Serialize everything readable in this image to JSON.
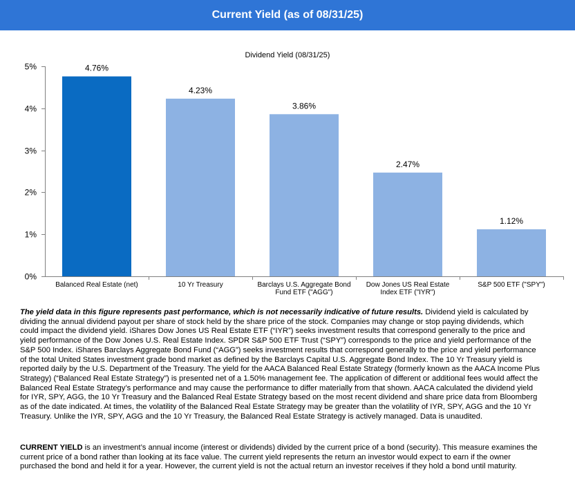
{
  "header": {
    "title": "Current Yield  (as of 08/31/25)",
    "bg_color": "#2f75d6"
  },
  "chart_data": {
    "type": "bar",
    "title": "Dividend Yield (08/31/25)",
    "categories": [
      [
        "Balanced Real Estate (net)"
      ],
      [
        "10 Yr Treasury"
      ],
      [
        "Barclays U.S. Aggregate Bond",
        "Fund ETF (\"AGG\")"
      ],
      [
        "Dow Jones US Real Estate",
        "Index ETF (\"IYR\")"
      ],
      [
        "S&P 500 ETF (\"SPY\")"
      ]
    ],
    "values": [
      4.76,
      4.23,
      3.86,
      2.47,
      1.12
    ],
    "data_labels": [
      "4.76%",
      "4.23%",
      "3.86%",
      "2.47%",
      "1.12%"
    ],
    "colors": [
      "#0a6bc2",
      "#8db2e3",
      "#8db2e3",
      "#8db2e3",
      "#8db2e3"
    ],
    "ylim": [
      0,
      5
    ],
    "yticks": [
      0,
      1,
      2,
      3,
      4,
      5
    ],
    "ytick_labels": [
      "0%",
      "1%",
      "2%",
      "3%",
      "4%",
      "5%"
    ],
    "grid": false,
    "legend": "none"
  },
  "footnote": {
    "lead": "The yield data in this figure represents past performance, which is not necessarily indicative of future results.",
    "body": " Dividend yield is calculated by dividing the annual dividend payout per share of stock held by the share price of the stock. Companies may change or stop paying dividends, which could impact the dividend yield. iShares Dow Jones US Real Estate ETF (“IYR”) seeks investment results that correspond generally to the price and yield performance of the Dow Jones U.S. Real Estate Index. SPDR S&P 500 ETF Trust (“SPY”) corresponds to the price and yield performance of the S&P 500 Index. iShares Barclays Aggregate Bond Fund (“AGG”) seeks investment results that correspond generally to the price and yield performance of the total United States investment grade bond market as defined by the Barclays Capital U.S. Aggregate Bond Index. The 10 Yr Treasury yield is reported daily by the U.S. Department of the Treasury. The yield for the AACA Balanced Real Estate Strategy (formerly known as the AACA Income Plus Strategy) (“Balanced Real Estate Strategy”) is presented net of a 1.50% management fee. The application of different or additional fees would affect the Balanced Real Estate Strategy’s performance and may cause the performance to differ materially from that shown. AACA calculated the dividend yield for IYR, SPY, AGG, the 10 Yr Treasury and the Balanced Real Estate Strategy based on the most recent dividend and share price data from Bloomberg as of the date indicated. At times, the volatility of the Balanced Real Estate Strategy may be greater than the volatility of IYR, SPY, AGG and the 10 Yr Treasury. Unlike the IYR, SPY, AGG and the 10 Yr Treasury, the Balanced Real Estate Strategy is actively managed. Data is unaudited."
  },
  "definition": {
    "term": "CURRENT  YIELD",
    "text": " is an investment’s annual income (interest or dividends) divided by the current price of a bond (security). This measure examines the current price of a bond rather than looking at its face value. The current yield represents the return an investor would expect to earn if the owner purchased the bond and held it for a year. However, the current yield is not the actual return an investor receives if they hold a bond until maturity."
  }
}
